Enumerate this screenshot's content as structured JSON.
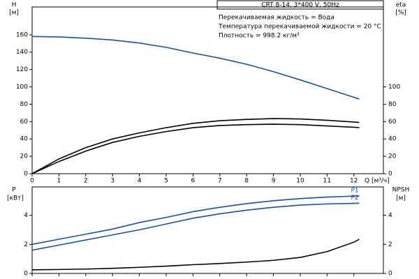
{
  "chart_data": [
    {
      "type": "line",
      "title": "CRT 8-14, 3*400 V, 50Hz",
      "annotations": [
        "Перекачиваемая жидкость = Вода",
        "Температура перекачиваемой жидкости = 20 °C",
        "Плотность = 998.2 кг/м³"
      ],
      "ylabel": "H",
      "yunit": "[м]",
      "y2label": "eta",
      "y2unit": "[%]",
      "xlabel": "Q [м³/ч]",
      "x": [
        0,
        1,
        2,
        3,
        4,
        5,
        6,
        7,
        8,
        9,
        10,
        11,
        12,
        12.2
      ],
      "xlim": [
        0,
        13.1
      ],
      "xticks": [
        0,
        1,
        2,
        3,
        4,
        5,
        6,
        7,
        8,
        9,
        10,
        11,
        12
      ],
      "ylim": [
        0,
        192
      ],
      "yticks": [
        0,
        20,
        40,
        60,
        80,
        100,
        120,
        140,
        160
      ],
      "y2lim": [
        0,
        192
      ],
      "y2ticks": [
        0,
        20,
        40,
        60,
        80,
        100
      ],
      "series": [
        {
          "color": "#1f4e9c",
          "axis": "y",
          "values": [
            158,
            157.5,
            156,
            154,
            150.5,
            145.5,
            139,
            133,
            126,
            117.5,
            108,
            98,
            88,
            86
          ]
        },
        {
          "color": "#000000",
          "axis": "y2",
          "values": [
            0,
            17,
            30,
            40,
            47,
            53,
            58,
            61,
            62.5,
            63.5,
            63,
            61.5,
            59.5,
            59
          ]
        },
        {
          "color": "#000000",
          "axis": "y2",
          "values": [
            0,
            14,
            26,
            36,
            43,
            48.5,
            53,
            55.5,
            56.5,
            57,
            56.5,
            55,
            53.5,
            53
          ]
        }
      ]
    },
    {
      "type": "line",
      "ylabel": "P",
      "yunit": "[кВт]",
      "y2label": "NPSH",
      "y2unit": "[м]",
      "x": [
        0,
        1,
        2,
        3,
        4,
        5,
        6,
        7,
        8,
        9,
        10,
        11,
        12,
        12.2
      ],
      "xlim": [
        0,
        13.1
      ],
      "xticks": [
        0,
        1,
        2,
        3,
        4,
        5,
        6,
        7,
        8,
        9,
        10,
        11,
        12
      ],
      "ylim": [
        0,
        5.95
      ],
      "yticks": [
        0,
        2,
        4
      ],
      "y2lim": [
        0,
        5.95
      ],
      "y2ticks": [
        0,
        2,
        4
      ],
      "series": [
        {
          "name": "P1",
          "color": "#1f4e9c",
          "axis": "y",
          "values": [
            2.0,
            2.35,
            2.7,
            3.05,
            3.5,
            3.85,
            4.25,
            4.55,
            4.8,
            5.0,
            5.15,
            5.25,
            5.32,
            5.33
          ]
        },
        {
          "name": "P2",
          "color": "#1f4e9c",
          "axis": "y",
          "values": [
            1.6,
            1.95,
            2.3,
            2.65,
            3.0,
            3.4,
            3.8,
            4.1,
            4.35,
            4.55,
            4.7,
            4.78,
            4.82,
            4.83
          ]
        },
        {
          "color": "#000000",
          "axis": "y2",
          "values": [
            0.25,
            0.27,
            0.3,
            0.35,
            0.42,
            0.5,
            0.6,
            0.68,
            0.78,
            0.9,
            1.1,
            1.5,
            2.15,
            2.35
          ]
        }
      ]
    }
  ]
}
